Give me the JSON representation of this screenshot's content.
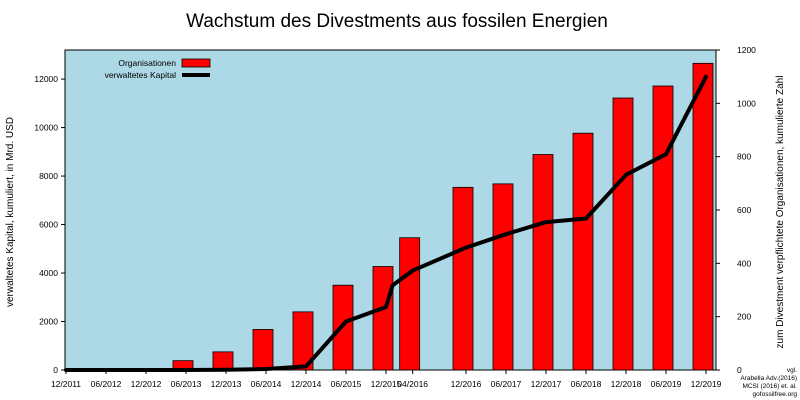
{
  "chart_data": {
    "type": "bar",
    "title": "Wachstum des Divestments aus fossilen Energien",
    "ylabel_left": "verwaltetes Kapital, kumuliert, in Mrd. USD",
    "ylabel_right": "zum Divestment verpflichtete Organisationen, kumulierte Zahl",
    "y_left_lim": [
      0,
      13200
    ],
    "y_left_ticks": [
      0,
      2000,
      4000,
      6000,
      8000,
      10000,
      12000
    ],
    "y_right_lim": [
      0,
      1200
    ],
    "y_right_ticks": [
      0,
      200,
      400,
      600,
      800,
      1000,
      1200
    ],
    "x_ticks": [
      "12/2011",
      "06/2012",
      "12/2012",
      "06/2013",
      "12/2013",
      "06/2014",
      "12/2014",
      "06/2015",
      "12/2015",
      "04/2016",
      "12/2016",
      "06/2017",
      "12/2017",
      "06/2018",
      "12/2018",
      "06/2019",
      "12/2019"
    ],
    "x_tick_dates": [
      "2011-12",
      "2012-06",
      "2012-12",
      "2013-06",
      "2013-12",
      "2014-06",
      "2014-12",
      "2015-06",
      "2015-12",
      "2016-04",
      "2016-12",
      "2017-06",
      "2017-12",
      "2018-06",
      "2018-12",
      "2019-06",
      "2019-12"
    ],
    "legend_position": "top-left",
    "grid": false,
    "background_color": "#add8e6",
    "bar_color": "#ff0000",
    "line_color": "#000000",
    "series": [
      {
        "name": "Organisationen",
        "kind": "bar",
        "axis": "right",
        "x": [
          "2013-06",
          "2013-12",
          "2014-06",
          "2014-12",
          "2015-06",
          "2015-12",
          "2016-04",
          "2016-12",
          "2017-06",
          "2017-12",
          "2018-06",
          "2018-12",
          "2019-06",
          "2019-12"
        ],
        "values": [
          35,
          68,
          152,
          218,
          318,
          388,
          496,
          685,
          698,
          808,
          888,
          1020,
          1065,
          1150
        ]
      },
      {
        "name": "verwaltetes Kapital",
        "kind": "line",
        "axis": "left",
        "x": [
          "2011-12",
          "2012-06",
          "2012-12",
          "2013-06",
          "2013-12",
          "2014-06",
          "2014-12",
          "2015-06",
          "2015-12",
          "2016-01",
          "2016-04",
          "2016-12",
          "2017-06",
          "2017-12",
          "2018-06",
          "2018-12",
          "2019-06",
          "2019-12"
        ],
        "values": [
          0,
          0,
          0,
          0,
          10,
          40,
          150,
          2000,
          2600,
          3500,
          4100,
          5050,
          5600,
          6100,
          6250,
          8050,
          8900,
          12100
        ]
      }
    ],
    "source_note": [
      "vgl.",
      "Arabella Adv.(2016)",
      "MCSI (2016) et. al.",
      "gofossilfree.org"
    ]
  }
}
